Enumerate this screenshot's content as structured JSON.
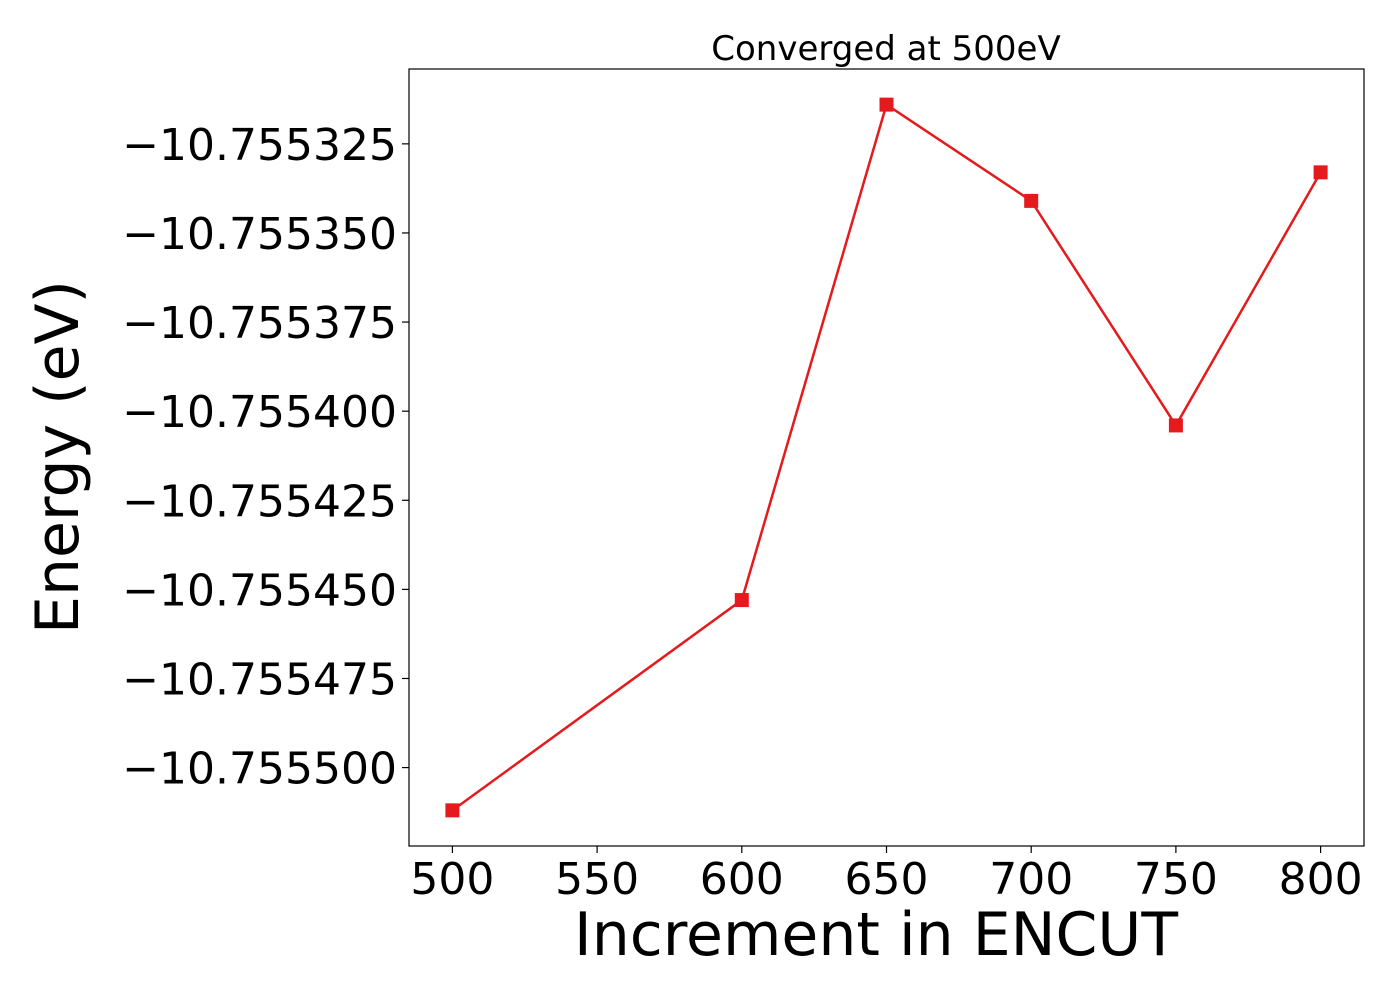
{
  "chart_data": {
    "type": "line",
    "title": "Converged at 500eV",
    "xlabel": "Increment in ENCUT",
    "ylabel": "Energy (eV)",
    "x_ticks": [
      500,
      550,
      600,
      650,
      700,
      750,
      800
    ],
    "x_tick_labels": [
      "500",
      "550",
      "600",
      "650",
      "700",
      "750",
      "800"
    ],
    "y_ticks": [
      -10.7555,
      -10.755475,
      -10.75545,
      -10.755425,
      -10.7554,
      -10.755375,
      -10.75535,
      -10.755325
    ],
    "y_tick_labels": [
      "−10.755500",
      "−10.755475",
      "−10.755450",
      "−10.755425",
      "−10.755400",
      "−10.755375",
      "−10.755350",
      "−10.755325"
    ],
    "xlim": [
      485,
      815
    ],
    "ylim": [
      -10.755522,
      -10.755304
    ],
    "grid": false,
    "series": [
      {
        "marker": "square",
        "color": "#e41a1c",
        "x": [
          500,
          600,
          650,
          700,
          750,
          800
        ],
        "y": [
          -10.755512,
          -10.755453,
          -10.755314,
          -10.755341,
          -10.755404,
          -10.755333
        ]
      }
    ]
  }
}
